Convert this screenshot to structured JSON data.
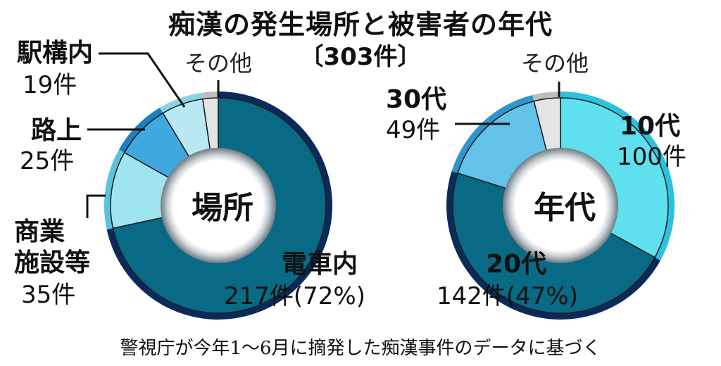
{
  "title": "痴漢の発生場所と被害者の年代",
  "subtitle": "〔303件〕",
  "footnote": "警視庁が今年1～6月に摘発した痴漢事件のデータに基づく",
  "chart_data": [
    {
      "type": "pie",
      "center_label": "場所",
      "total": 303,
      "slices": [
        {
          "name": "電車内",
          "value": 217,
          "count_label": "217件(72%)",
          "color": "#086a84",
          "rim": "#0a2a5c"
        },
        {
          "name": "商業施設等",
          "name_lines": [
            "商業",
            "施設等"
          ],
          "value": 35,
          "count_label": "35件",
          "color": "#9fe5f0",
          "rim": "#5ac3dc"
        },
        {
          "name": "路上",
          "value": 25,
          "count_label": "25件",
          "color": "#3fa8df",
          "rim": "#1d7ec1"
        },
        {
          "name": "駅構内",
          "value": 19,
          "count_label": "19件",
          "color": "#b8e9f2",
          "rim": "#86d4e6"
        },
        {
          "name": "その他",
          "value": 7,
          "count_label": "",
          "color": "#e4e4e4",
          "rim": "#bdbdbd"
        }
      ]
    },
    {
      "type": "pie",
      "center_label": "年代",
      "total": 303,
      "slices": [
        {
          "name": "10代",
          "value": 100,
          "count_label": "100件",
          "color": "#5ee0ee",
          "rim": "#2cc1dc"
        },
        {
          "name": "20代",
          "value": 142,
          "count_label": "142件(47%)",
          "color": "#086a84",
          "rim": "#0a2a5c"
        },
        {
          "name": "30代",
          "value": 49,
          "count_label": "49件",
          "color": "#63c2ea",
          "rim": "#2f95cf"
        },
        {
          "name": "その他",
          "value": 12,
          "count_label": "",
          "color": "#e4e4e4",
          "rim": "#bdbdbd"
        }
      ]
    }
  ]
}
